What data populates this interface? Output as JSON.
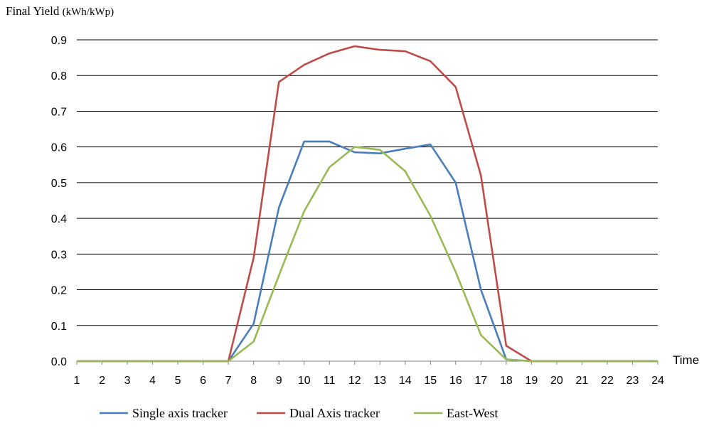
{
  "chart_data": {
    "type": "line",
    "title": "",
    "ylabel": "Final Yield",
    "ylabel_unit": "(kWh/kWp)",
    "xlabel": "Time",
    "x": [
      1,
      2,
      3,
      4,
      5,
      6,
      7,
      8,
      9,
      10,
      11,
      12,
      13,
      14,
      15,
      16,
      17,
      18,
      19,
      20,
      21,
      22,
      23,
      24
    ],
    "ylim": [
      0,
      0.9
    ],
    "yticks": [
      "0.0",
      "0.1",
      "0.2",
      "0.3",
      "0.4",
      "0.5",
      "0.6",
      "0.7",
      "0.8",
      "0.9"
    ],
    "grid": true,
    "legend_position": "bottom",
    "series": [
      {
        "name": "Single axis tracker",
        "color": "#4a7ebb",
        "values": [
          0,
          0,
          0,
          0,
          0,
          0,
          0,
          0.105,
          0.43,
          0.615,
          0.615,
          0.585,
          0.582,
          0.595,
          0.607,
          0.5,
          0.2,
          0.005,
          0,
          0,
          0,
          0,
          0,
          0
        ]
      },
      {
        "name": "Dual Axis tracker",
        "color": "#be4b48",
        "values": [
          0,
          0,
          0,
          0,
          0,
          0,
          0,
          0.29,
          0.782,
          0.83,
          0.862,
          0.882,
          0.872,
          0.868,
          0.84,
          0.768,
          0.52,
          0.043,
          0,
          0,
          0,
          0,
          0,
          0
        ]
      },
      {
        "name": "East-West",
        "color": "#98b954",
        "values": [
          0,
          0,
          0,
          0,
          0,
          0,
          0,
          0.055,
          0.24,
          0.42,
          0.543,
          0.6,
          0.592,
          0.532,
          0.407,
          0.25,
          0.073,
          0.005,
          0,
          0,
          0,
          0,
          0,
          0
        ]
      }
    ]
  }
}
